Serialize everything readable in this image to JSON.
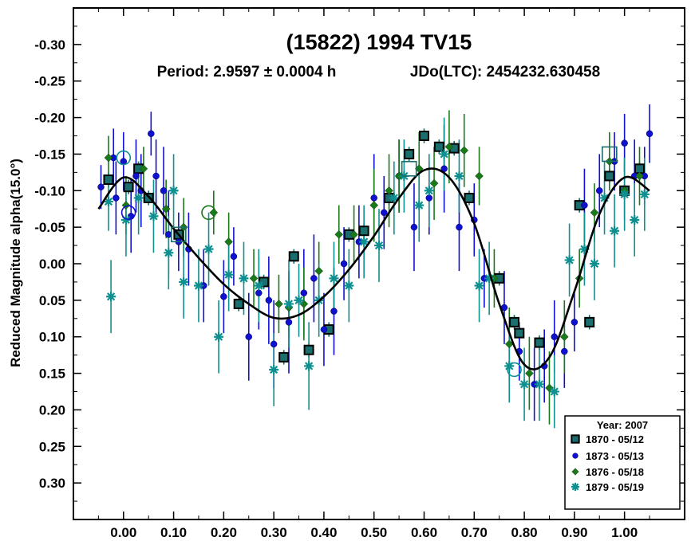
{
  "chart_data": {
    "type": "scatter",
    "title": "(15822) 1994 TV15",
    "period_text": "Period: 2.9597 ± 0.0004 h",
    "epoch_text": "JDo(LTC): 2454232.630458",
    "xlabel": "",
    "ylabel": "Reduced Magnitude alpha(15.0°)",
    "xlim": [
      -0.1,
      1.12
    ],
    "ylim": [
      -0.35,
      0.35
    ],
    "y_inverted": true,
    "xticks": [
      0.0,
      0.1,
      0.2,
      0.3,
      0.4,
      0.5,
      0.6,
      0.7,
      0.8,
      0.9,
      1.0
    ],
    "xtick_labels": [
      "0.00",
      "0.10",
      "0.20",
      "0.30",
      "0.40",
      "0.50",
      "0.60",
      "0.70",
      "0.80",
      "0.90",
      "1.00"
    ],
    "yticks": [
      -0.3,
      -0.25,
      -0.2,
      -0.15,
      -0.1,
      -0.05,
      0.0,
      0.05,
      0.1,
      0.15,
      0.2,
      0.25,
      0.3
    ],
    "ytick_labels": [
      "-0.30",
      "-0.25",
      "-0.20",
      "-0.15",
      "-0.10",
      "-0.05",
      "0.00",
      "0.05",
      "0.10",
      "0.15",
      "0.20",
      "0.25",
      "0.30"
    ],
    "legend": {
      "title": "Year: 2007",
      "position": "bottom-right",
      "entries": [
        "1870 - 05/12",
        "1873 - 05/13",
        "1876 - 05/18",
        "1879 - 05/19"
      ]
    },
    "fit_curve": {
      "name": "Fourier fit",
      "color": "#000000",
      "x": [
        -0.05,
        0.0,
        0.05,
        0.1,
        0.15,
        0.2,
        0.25,
        0.3,
        0.35,
        0.4,
        0.45,
        0.5,
        0.55,
        0.6,
        0.65,
        0.7,
        0.75,
        0.8,
        0.85,
        0.9,
        0.95,
        1.0,
        1.05
      ],
      "y": [
        -0.075,
        -0.118,
        -0.092,
        -0.048,
        -0.008,
        0.028,
        0.055,
        0.074,
        0.07,
        0.045,
        0.008,
        -0.038,
        -0.09,
        -0.128,
        -0.118,
        -0.055,
        0.055,
        0.138,
        0.128,
        0.038,
        -0.068,
        -0.118,
        -0.1
      ]
    },
    "series": [
      {
        "name": "1870 - 05/12",
        "marker": "square",
        "color": "#1a6e6e",
        "x": [
          -0.03,
          0.01,
          0.03,
          0.05,
          0.11,
          0.23,
          0.28,
          0.32,
          0.34,
          0.37,
          0.41,
          0.45,
          0.48,
          0.53,
          0.57,
          0.6,
          0.63,
          0.66,
          0.69,
          0.75,
          0.78,
          0.79,
          0.83,
          0.91,
          0.93,
          0.97,
          1.0,
          1.03
        ],
        "y": [
          -0.115,
          -0.105,
          -0.13,
          -0.09,
          -0.04,
          0.055,
          0.025,
          0.128,
          -0.01,
          0.118,
          0.09,
          -0.04,
          -0.045,
          -0.09,
          -0.15,
          -0.175,
          -0.16,
          -0.158,
          -0.09,
          0.02,
          0.08,
          0.095,
          0.108,
          -0.08,
          0.08,
          -0.12,
          -0.1,
          -0.13
        ],
        "err": [
          0.01,
          0.01,
          0.01,
          0.01,
          0.01,
          0.01,
          0.01,
          0.01,
          0.01,
          0.01,
          0.01,
          0.01,
          0.01,
          0.01,
          0.01,
          0.01,
          0.01,
          0.01,
          0.01,
          0.01,
          0.01,
          0.01,
          0.01,
          0.01,
          0.01,
          0.01,
          0.01,
          0.01
        ]
      },
      {
        "name": "1873 - 05/13",
        "marker": "circle",
        "color": "#1010d0",
        "x": [
          -0.045,
          -0.02,
          -0.015,
          0.0,
          0.015,
          0.025,
          0.035,
          0.055,
          0.065,
          0.08,
          0.09,
          0.11,
          0.13,
          0.16,
          0.2,
          0.22,
          0.25,
          0.27,
          0.29,
          0.3,
          0.33,
          0.36,
          0.38,
          0.4,
          0.42,
          0.44,
          0.47,
          0.5,
          0.52,
          0.55,
          0.58,
          0.61,
          0.64,
          0.67,
          0.7,
          0.72,
          0.76,
          0.79,
          0.82,
          0.84,
          0.86,
          0.88,
          0.9,
          0.92,
          0.95,
          0.98,
          1.0,
          1.02,
          1.04,
          1.05
        ],
        "y": [
          -0.105,
          -0.145,
          -0.09,
          -0.14,
          -0.065,
          -0.12,
          -0.1,
          -0.178,
          -0.12,
          -0.1,
          -0.04,
          -0.03,
          -0.02,
          0.03,
          0.045,
          -0.01,
          0.1,
          0.04,
          0.05,
          0.11,
          0.08,
          0.04,
          0.02,
          0.09,
          0.065,
          0.0,
          -0.03,
          -0.09,
          -0.07,
          -0.12,
          -0.05,
          -0.09,
          -0.13,
          -0.05,
          -0.06,
          0.02,
          0.06,
          0.12,
          0.165,
          0.14,
          0.1,
          0.12,
          0.08,
          -0.08,
          -0.1,
          -0.14,
          -0.165,
          -0.12,
          -0.12,
          -0.178
        ],
        "err": [
          0.03,
          0.04,
          0.05,
          0.04,
          0.05,
          0.05,
          0.05,
          0.03,
          0.05,
          0.06,
          0.06,
          0.04,
          0.05,
          0.05,
          0.05,
          0.04,
          0.06,
          0.05,
          0.06,
          0.06,
          0.07,
          0.06,
          0.06,
          0.05,
          0.06,
          0.05,
          0.05,
          0.06,
          0.05,
          0.05,
          0.06,
          0.05,
          0.06,
          0.06,
          0.05,
          0.04,
          0.05,
          0.04,
          0.05,
          0.05,
          0.05,
          0.05,
          0.04,
          0.05,
          0.05,
          0.04,
          0.04,
          0.05,
          0.04,
          0.04
        ]
      },
      {
        "name": "1876 - 05/18",
        "marker": "diamond",
        "color": "#1a7a1a",
        "x": [
          -0.03,
          0.005,
          0.04,
          0.085,
          0.12,
          0.18,
          0.21,
          0.26,
          0.31,
          0.33,
          0.36,
          0.39,
          0.43,
          0.46,
          0.5,
          0.53,
          0.55,
          0.59,
          0.62,
          0.65,
          0.68,
          0.71,
          0.74,
          0.77,
          0.81,
          0.85,
          0.88,
          0.91,
          0.94,
          0.97,
          1.0,
          1.03
        ],
        "y": [
          -0.145,
          -0.08,
          -0.13,
          -0.075,
          -0.05,
          -0.07,
          -0.03,
          0.02,
          0.055,
          0.06,
          0.055,
          0.01,
          -0.04,
          -0.04,
          -0.08,
          -0.1,
          -0.12,
          -0.13,
          -0.11,
          -0.16,
          -0.155,
          -0.12,
          0.02,
          0.11,
          0.15,
          0.17,
          0.1,
          0.02,
          -0.07,
          -0.14,
          -0.1,
          -0.12
        ],
        "err": [
          0.03,
          0.04,
          0.03,
          0.04,
          0.04,
          0.03,
          0.04,
          0.04,
          0.04,
          0.04,
          0.05,
          0.04,
          0.04,
          0.04,
          0.05,
          0.05,
          0.05,
          0.05,
          0.05,
          0.05,
          0.05,
          0.04,
          0.04,
          0.05,
          0.05,
          0.05,
          0.05,
          0.04,
          0.04,
          0.04,
          0.04,
          0.04
        ]
      },
      {
        "name": "1879 - 05/19",
        "marker": "asterisk",
        "color": "#0f9090",
        "x": [
          -0.03,
          -0.025,
          0.005,
          0.03,
          0.06,
          0.09,
          0.1,
          0.12,
          0.15,
          0.17,
          0.19,
          0.21,
          0.24,
          0.27,
          0.3,
          0.33,
          0.35,
          0.37,
          0.39,
          0.42,
          0.45,
          0.48,
          0.51,
          0.54,
          0.56,
          0.59,
          0.61,
          0.64,
          0.67,
          0.71,
          0.73,
          0.77,
          0.8,
          0.83,
          0.86,
          0.89,
          0.92,
          0.94,
          0.96,
          0.98,
          1.0,
          1.02,
          1.04
        ],
        "y": [
          -0.085,
          0.045,
          -0.06,
          -0.09,
          -0.065,
          -0.015,
          -0.1,
          0.025,
          0.03,
          -0.02,
          0.1,
          0.015,
          0.02,
          0.03,
          0.145,
          0.055,
          0.05,
          0.14,
          0.05,
          0.02,
          0.03,
          -0.03,
          -0.025,
          -0.09,
          -0.12,
          -0.08,
          -0.1,
          -0.15,
          -0.12,
          0.03,
          0.02,
          0.14,
          0.165,
          0.165,
          0.175,
          -0.005,
          -0.02,
          0.0,
          -0.09,
          -0.045,
          -0.095,
          -0.06,
          -0.095
        ],
        "err": [
          0.04,
          0.05,
          0.05,
          0.05,
          0.05,
          0.05,
          0.05,
          0.05,
          0.05,
          0.05,
          0.05,
          0.05,
          0.05,
          0.05,
          0.05,
          0.06,
          0.05,
          0.06,
          0.05,
          0.05,
          0.05,
          0.05,
          0.05,
          0.05,
          0.05,
          0.05,
          0.05,
          0.05,
          0.05,
          0.05,
          0.05,
          0.05,
          0.05,
          0.05,
          0.05,
          0.05,
          0.05,
          0.05,
          0.05,
          0.05,
          0.05,
          0.05,
          0.05
        ]
      }
    ],
    "highlighted_points": [
      {
        "series": "1870 - 05/12",
        "marker": "open-square",
        "x": 0.11,
        "y": -0.04
      },
      {
        "series": "1870 - 05/12",
        "marker": "open-square",
        "x": 0.57,
        "y": -0.13
      },
      {
        "series": "1870 - 05/12",
        "marker": "open-square",
        "x": 0.97,
        "y": -0.15
      },
      {
        "series": "1873 - 05/13",
        "marker": "open-circle",
        "x": 0.01,
        "y": -0.07
      },
      {
        "series": "1876 - 05/18",
        "marker": "open-circle",
        "x": 0.17,
        "y": -0.07
      },
      {
        "series": "1879 - 05/19",
        "marker": "open-circle",
        "x": 0.0,
        "y": -0.145
      },
      {
        "series": "1879 - 05/19",
        "marker": "open-circle",
        "x": 0.78,
        "y": 0.145
      }
    ]
  }
}
